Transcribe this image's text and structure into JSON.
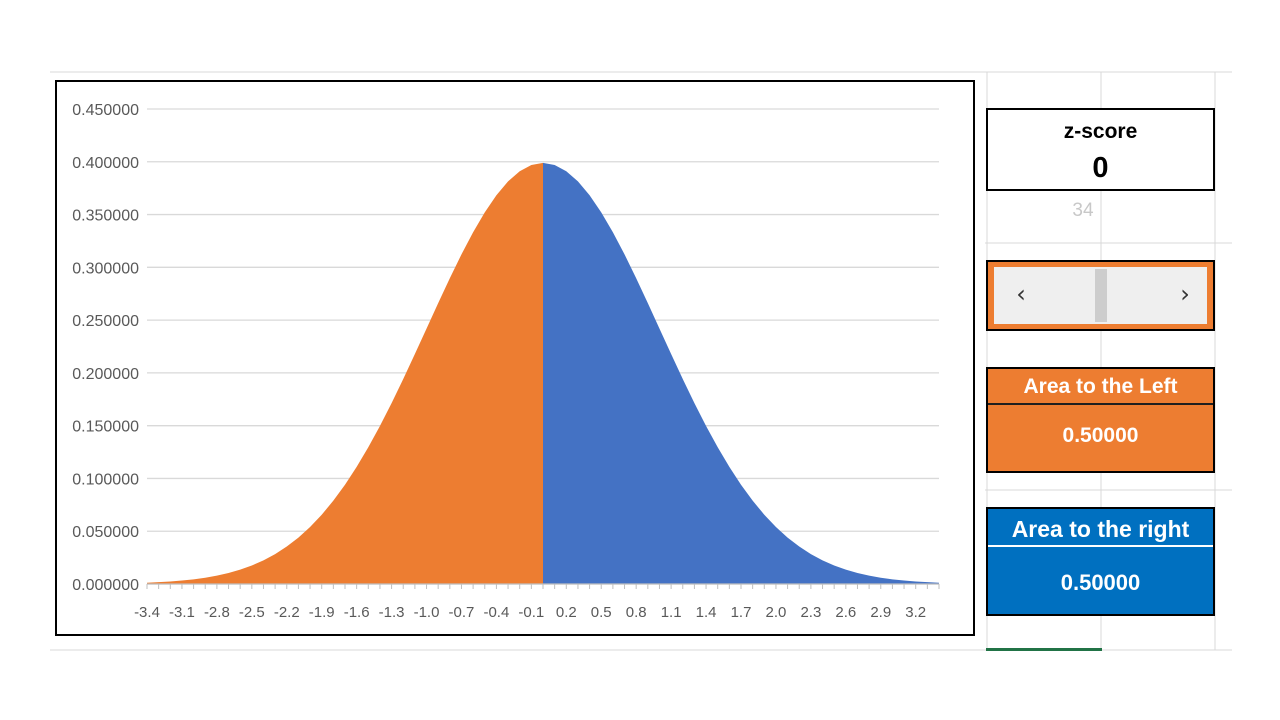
{
  "chart_data": {
    "type": "area",
    "title": "",
    "xlabel": "",
    "ylabel": "",
    "ylim": [
      0,
      0.45
    ],
    "y_ticks": [
      "0.000000",
      "0.050000",
      "0.100000",
      "0.150000",
      "0.200000",
      "0.250000",
      "0.300000",
      "0.350000",
      "0.400000",
      "0.450000"
    ],
    "x_tick_labels": [
      "-3.4",
      "-3.1",
      "-2.8",
      "-2.5",
      "-2.2",
      "-1.9",
      "-1.6",
      "-1.3",
      "-1.0",
      "-0.7",
      "-0.4",
      "-0.1",
      "0.2",
      "0.5",
      "0.8",
      "1.1",
      "1.4",
      "1.7",
      "2.0",
      "2.3",
      "2.6",
      "2.9",
      "3.2"
    ],
    "x_range": [
      -3.4,
      3.4
    ],
    "x_step": 0.1,
    "grid": true,
    "legend": "none",
    "split_at": 0,
    "series": [
      {
        "region": "left of z",
        "color": "#ed7d31",
        "x_from": -3.4,
        "x_to": 0
      },
      {
        "region": "right of z",
        "color": "#4472c4",
        "x_from": 0,
        "x_to": 3.4
      }
    ],
    "values_formula": "standard normal density f(x)=exp(-x^2/2)/sqrt(2*pi)",
    "peak": {
      "x": 0,
      "y": 0.398942
    }
  },
  "zscore": {
    "label": "z-score",
    "value": "0"
  },
  "cell_value": "34",
  "scrollbar": {
    "left_arrow": "‹",
    "right_arrow": "›",
    "position": 0.5
  },
  "area_left": {
    "label": "Area to the Left",
    "value": "0.50000"
  },
  "area_right": {
    "label": "Area to the right",
    "value": "0.50000"
  },
  "colors": {
    "orange": "#ed7d31",
    "blue": "#4472c4",
    "right_box": "#0070c0"
  }
}
